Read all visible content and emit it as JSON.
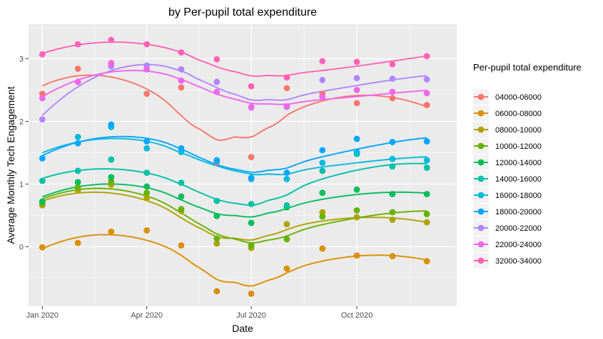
{
  "chart_data": {
    "type": "scatter",
    "title": "by Per-pupil total expenditure",
    "xlabel": "Date",
    "ylabel": "Average Monthly Tech Engagement",
    "legend_title": "Per-pupil total expenditure",
    "legend_position": "right",
    "grid": true,
    "smooth_lines": true,
    "x": [
      "2020-01-01",
      "2020-02-01",
      "2020-03-01",
      "2020-04-01",
      "2020-05-01",
      "2020-06-01",
      "2020-07-01",
      "2020-08-01",
      "2020-09-01",
      "2020-10-01",
      "2020-11-01",
      "2020-12-01"
    ],
    "xlim": [
      "2019-12-20",
      "2020-12-27"
    ],
    "ylim": [
      -0.95,
      3.55
    ],
    "x_ticks": [
      {
        "date": "2020-01-01",
        "label": "Jan 2020"
      },
      {
        "date": "2020-04-01",
        "label": "Apr 2020"
      },
      {
        "date": "2020-07-01",
        "label": "Jul 2020"
      },
      {
        "date": "2020-10-01",
        "label": "Oct 2020"
      }
    ],
    "y_ticks": [
      {
        "value": 0,
        "label": "0"
      },
      {
        "value": 1,
        "label": "1"
      },
      {
        "value": 2,
        "label": "2"
      },
      {
        "value": 3,
        "label": "3"
      }
    ],
    "series": [
      {
        "name": "04000-06000",
        "color": "#F8766D",
        "values": [
          2.44,
          2.84,
          2.93,
          2.44,
          2.54,
          1.35,
          1.43,
          2.53,
          2.44,
          2.29,
          2.37,
          2.26
        ]
      },
      {
        "name": "06000-08000",
        "color": "#DB8E00",
        "values": [
          -0.01,
          0.06,
          0.24,
          0.26,
          0.02,
          -0.71,
          -0.75,
          -0.35,
          -0.03,
          -0.14,
          -0.15,
          -0.23
        ]
      },
      {
        "name": "08000-10000",
        "color": "#AEA200",
        "values": [
          0.66,
          0.9,
          0.99,
          0.78,
          0.57,
          0.05,
          -0.02,
          0.36,
          0.55,
          0.47,
          0.43,
          0.39
        ]
      },
      {
        "name": "10000-12000",
        "color": "#64B200",
        "values": [
          0.7,
          0.95,
          1.04,
          0.86,
          0.6,
          0.13,
          0.02,
          0.12,
          0.48,
          0.58,
          0.55,
          0.52
        ]
      },
      {
        "name": "12000-14000",
        "color": "#00BD5C",
        "values": [
          0.72,
          1.03,
          1.11,
          0.96,
          0.8,
          0.49,
          0.38,
          0.63,
          0.86,
          0.91,
          0.84,
          0.84
        ]
      },
      {
        "name": "14000-16000",
        "color": "#00C1A7",
        "values": [
          1.05,
          1.21,
          1.39,
          1.18,
          1.02,
          0.73,
          0.68,
          0.66,
          1.21,
          1.48,
          1.28,
          1.26
        ]
      },
      {
        "name": "16000-18000",
        "color": "#00BADE",
        "values": [
          1.41,
          1.75,
          1.91,
          1.57,
          1.51,
          1.38,
          1.08,
          1.08,
          1.34,
          1.51,
          1.4,
          1.38
        ]
      },
      {
        "name": "18000-20000",
        "color": "#00A6FF",
        "values": [
          1.41,
          1.65,
          1.95,
          1.68,
          1.57,
          1.37,
          1.1,
          1.18,
          1.54,
          1.72,
          1.67,
          1.68
        ]
      },
      {
        "name": "20000-22000",
        "color": "#B385FF",
        "values": [
          2.03,
          2.63,
          2.88,
          2.89,
          2.83,
          2.63,
          2.22,
          2.23,
          2.66,
          2.69,
          2.68,
          2.67
        ]
      },
      {
        "name": "22000-24000",
        "color": "#EF67EB",
        "values": [
          2.37,
          2.63,
          2.92,
          2.83,
          2.65,
          2.47,
          2.23,
          2.24,
          2.39,
          2.5,
          2.47,
          2.45
        ]
      },
      {
        "name": "32000-34000",
        "color": "#FF63B6",
        "values": [
          3.07,
          3.23,
          3.3,
          3.23,
          3.1,
          2.99,
          2.56,
          2.7,
          2.96,
          2.95,
          2.91,
          3.04
        ]
      }
    ]
  }
}
